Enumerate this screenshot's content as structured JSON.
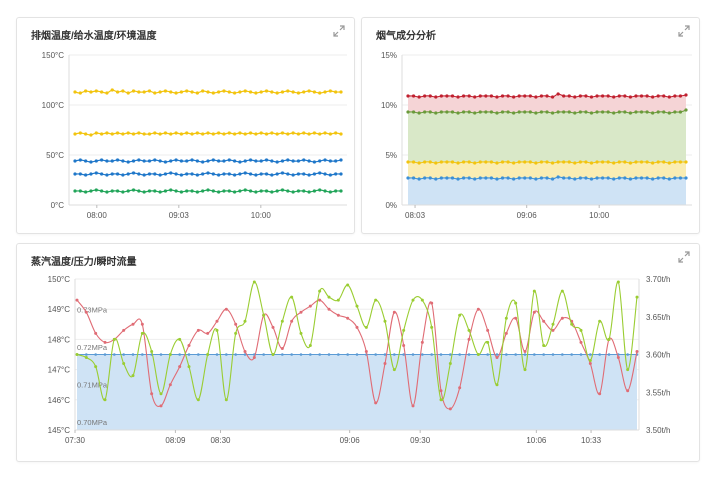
{
  "panels": {
    "temp": {
      "title": "排烟温度/给水温度/环境温度"
    },
    "gas": {
      "title": "烟气成分分析"
    },
    "steam": {
      "title": "蒸汽温度/压力/瞬时流量"
    }
  },
  "chart_data": [
    {
      "id": "temp",
      "type": "line",
      "title": "排烟温度/给水温度/环境温度",
      "ylim": [
        0,
        150
      ],
      "y_ticks": [
        "0°C",
        "50°C",
        "100°C",
        "150°C"
      ],
      "x_ticks": [
        "08:00",
        "09:03",
        "10:00"
      ],
      "grid": true,
      "series": [
        {
          "color": "#f2c40f",
          "values": [
            113,
            112,
            114,
            113,
            114,
            113,
            112,
            115,
            113,
            114,
            112,
            114,
            113,
            113,
            114,
            112,
            113,
            114,
            113,
            112,
            113,
            114,
            113,
            112,
            114,
            113,
            112,
            113,
            114,
            113,
            112,
            113,
            114,
            113,
            112,
            113,
            114,
            113,
            112,
            113,
            114,
            113,
            112,
            113,
            114,
            113,
            112,
            113,
            114,
            113,
            113
          ]
        },
        {
          "color": "#f2c40f",
          "values": [
            71,
            72,
            71,
            70,
            72,
            71,
            72,
            71,
            72,
            71,
            72,
            71,
            72,
            71,
            71,
            72,
            71,
            72,
            71,
            72,
            71,
            72,
            71,
            72,
            71,
            72,
            71,
            72,
            71,
            72,
            71,
            72,
            71,
            72,
            71,
            72,
            71,
            72,
            71,
            72,
            71,
            72,
            71,
            72,
            71,
            72,
            71,
            72,
            71,
            72,
            71
          ]
        },
        {
          "color": "#1f77c9",
          "values": [
            44,
            45,
            44,
            43,
            44,
            45,
            44,
            44,
            45,
            44,
            43,
            44,
            45,
            44,
            44,
            45,
            44,
            43,
            44,
            45,
            44,
            44,
            45,
            44,
            43,
            44,
            45,
            44,
            44,
            45,
            44,
            43,
            44,
            45,
            44,
            44,
            45,
            44,
            43,
            44,
            45,
            44,
            44,
            45,
            44,
            43,
            44,
            45,
            44,
            44,
            45
          ]
        },
        {
          "color": "#1f77c9",
          "values": [
            31,
            31,
            30,
            31,
            32,
            31,
            30,
            31,
            31,
            30,
            31,
            32,
            31,
            30,
            31,
            31,
            30,
            31,
            32,
            31,
            30,
            31,
            31,
            30,
            31,
            32,
            31,
            30,
            31,
            31,
            30,
            31,
            32,
            31,
            30,
            31,
            31,
            30,
            31,
            32,
            31,
            30,
            31,
            31,
            30,
            31,
            32,
            31,
            30,
            31,
            31
          ]
        },
        {
          "color": "#22a55a",
          "values": [
            14,
            14,
            13,
            14,
            15,
            14,
            13,
            14,
            14,
            13,
            14,
            15,
            14,
            13,
            14,
            14,
            13,
            14,
            15,
            14,
            13,
            14,
            14,
            13,
            14,
            15,
            14,
            13,
            14,
            14,
            13,
            14,
            15,
            14,
            13,
            14,
            14,
            13,
            14,
            15,
            14,
            13,
            14,
            14,
            13,
            14,
            15,
            14,
            13,
            14,
            14
          ]
        }
      ]
    },
    {
      "id": "gas",
      "type": "area",
      "title": "烟气成分分析",
      "ylim": [
        0,
        15
      ],
      "y_ticks": [
        "0%",
        "5%",
        "10%",
        "15%"
      ],
      "x_ticks": [
        "08:03",
        "09:06",
        "10:00"
      ],
      "grid": true,
      "series": [
        {
          "color": "#c0202f",
          "fill": "#f5d4d6",
          "values": [
            10.9,
            10.9,
            10.8,
            10.9,
            10.9,
            10.8,
            10.9,
            10.9,
            10.9,
            10.8,
            10.9,
            10.9,
            10.8,
            10.9,
            10.9,
            10.9,
            10.8,
            10.9,
            10.9,
            10.8,
            10.9,
            10.9,
            10.9,
            10.8,
            10.9,
            10.9,
            10.8,
            11.1,
            10.9,
            10.9,
            10.8,
            10.9,
            10.9,
            10.8,
            10.9,
            10.9,
            10.9,
            10.8,
            10.9,
            10.9,
            10.8,
            10.9,
            10.9,
            10.9,
            10.8,
            10.9,
            10.9,
            10.8,
            10.9,
            10.9,
            11.0
          ]
        },
        {
          "color": "#6a9a3a",
          "fill": "#d9e8c8",
          "values": [
            9.3,
            9.3,
            9.2,
            9.3,
            9.3,
            9.2,
            9.3,
            9.3,
            9.3,
            9.2,
            9.3,
            9.3,
            9.2,
            9.3,
            9.3,
            9.3,
            9.2,
            9.3,
            9.3,
            9.2,
            9.3,
            9.3,
            9.3,
            9.2,
            9.3,
            9.3,
            9.2,
            9.3,
            9.3,
            9.3,
            9.2,
            9.3,
            9.3,
            9.2,
            9.3,
            9.3,
            9.3,
            9.2,
            9.3,
            9.3,
            9.2,
            9.3,
            9.3,
            9.3,
            9.2,
            9.3,
            9.3,
            9.2,
            9.3,
            9.3,
            9.5
          ]
        },
        {
          "color": "#f2c40f",
          "fill": "#faedb3",
          "values": [
            4.3,
            4.3,
            4.2,
            4.3,
            4.3,
            4.2,
            4.3,
            4.3,
            4.3,
            4.2,
            4.3,
            4.3,
            4.2,
            4.3,
            4.3,
            4.3,
            4.2,
            4.3,
            4.3,
            4.2,
            4.3,
            4.3,
            4.3,
            4.2,
            4.3,
            4.3,
            4.2,
            4.3,
            4.3,
            4.3,
            4.2,
            4.3,
            4.3,
            4.2,
            4.3,
            4.3,
            4.3,
            4.2,
            4.3,
            4.3,
            4.2,
            4.3,
            4.3,
            4.3,
            4.2,
            4.3,
            4.3,
            4.2,
            4.3,
            4.3,
            4.3
          ]
        },
        {
          "color": "#3b8fd6",
          "fill": "#cfe3f5",
          "values": [
            2.7,
            2.7,
            2.6,
            2.7,
            2.7,
            2.6,
            2.7,
            2.7,
            2.7,
            2.6,
            2.7,
            2.7,
            2.6,
            2.7,
            2.7,
            2.7,
            2.6,
            2.7,
            2.7,
            2.6,
            2.7,
            2.7,
            2.7,
            2.6,
            2.7,
            2.7,
            2.6,
            2.8,
            2.7,
            2.7,
            2.6,
            2.7,
            2.7,
            2.6,
            2.7,
            2.7,
            2.7,
            2.6,
            2.7,
            2.7,
            2.6,
            2.7,
            2.7,
            2.7,
            2.6,
            2.7,
            2.7,
            2.6,
            2.7,
            2.7,
            2.7
          ]
        }
      ]
    },
    {
      "id": "steam",
      "type": "line",
      "title": "蒸汽温度/压力/瞬时流量",
      "ylim_left": [
        145,
        150
      ],
      "ylim_right": [
        3.5,
        3.7
      ],
      "y_ticks_left": [
        "145°C",
        "146°C",
        "147°C",
        "148°C",
        "149°C",
        "150°C"
      ],
      "y_ticks_right": [
        "3.50t/h",
        "3.55t/h",
        "3.60t/h",
        "3.65t/h",
        "3.70t/h"
      ],
      "pressure_ticks": [
        "0.70MPa",
        "0.71MPa",
        "0.72MPa",
        "0.73MPa"
      ],
      "x_ticks": [
        "07:30",
        "08:09",
        "08:30",
        "09:06",
        "09:30",
        "10:06",
        "10:33"
      ],
      "grid": true,
      "series": [
        {
          "color": "#e06c75",
          "values": [
            149.3,
            148.9,
            148.2,
            147.9,
            148.0,
            148.3,
            148.5,
            148.5,
            146.2,
            145.8,
            146.5,
            147.1,
            147.8,
            148.3,
            148.2,
            148.6,
            149.0,
            148.5,
            147.6,
            147.4,
            148.8,
            148.4,
            147.7,
            148.6,
            148.9,
            149.1,
            149.3,
            149.0,
            148.8,
            148.7,
            148.4,
            147.6,
            145.9,
            147.2,
            148.9,
            147.8,
            145.8,
            147.9,
            149.2,
            146.3,
            145.7,
            146.4,
            148.0,
            149.0,
            148.3,
            147.4,
            148.2,
            148.7,
            147.6,
            148.9,
            148.6,
            148.3,
            148.7,
            148.6,
            147.9,
            147.2,
            146.2,
            148.0,
            147.4,
            146.3,
            147.6
          ]
        },
        {
          "color": "#9acd32",
          "values": [
            147.5,
            147.4,
            147.1,
            146.0,
            148.0,
            147.2,
            146.8,
            148.2,
            147.6,
            146.2,
            147.5,
            148.0,
            147.1,
            146.0,
            147.5,
            148.3,
            146.0,
            148.2,
            148.6,
            149.9,
            148.8,
            147.5,
            148.6,
            149.4,
            148.2,
            147.8,
            149.6,
            149.4,
            149.3,
            149.8,
            149.1,
            148.4,
            149.3,
            148.6,
            147.0,
            148.3,
            149.3,
            149.3,
            148.4,
            146.0,
            147.2,
            148.8,
            148.3,
            147.5,
            147.9,
            146.5,
            148.7,
            149.2,
            147.0,
            149.6,
            147.8,
            148.5,
            149.6,
            148.5,
            148.3,
            147.3,
            148.6,
            148.0,
            149.9,
            147.0,
            149.4
          ]
        },
        {
          "color": "#5b9bd5",
          "fill": "#cfe3f5",
          "axis": "right",
          "values": [
            3.6,
            3.6,
            3.6,
            3.6,
            3.6,
            3.6,
            3.6,
            3.6,
            3.6,
            3.6,
            3.6,
            3.6,
            3.6,
            3.6,
            3.6,
            3.6,
            3.6,
            3.6,
            3.6,
            3.6,
            3.6,
            3.6,
            3.6,
            3.6,
            3.6,
            3.6,
            3.6,
            3.6,
            3.6,
            3.6,
            3.6,
            3.6,
            3.6,
            3.6,
            3.6,
            3.6,
            3.6,
            3.6,
            3.6,
            3.6,
            3.6,
            3.6,
            3.6,
            3.6,
            3.6,
            3.6,
            3.6,
            3.6,
            3.6,
            3.6,
            3.6,
            3.6,
            3.6,
            3.6,
            3.6,
            3.6,
            3.6,
            3.6,
            3.6,
            3.6,
            3.6
          ]
        }
      ]
    }
  ]
}
